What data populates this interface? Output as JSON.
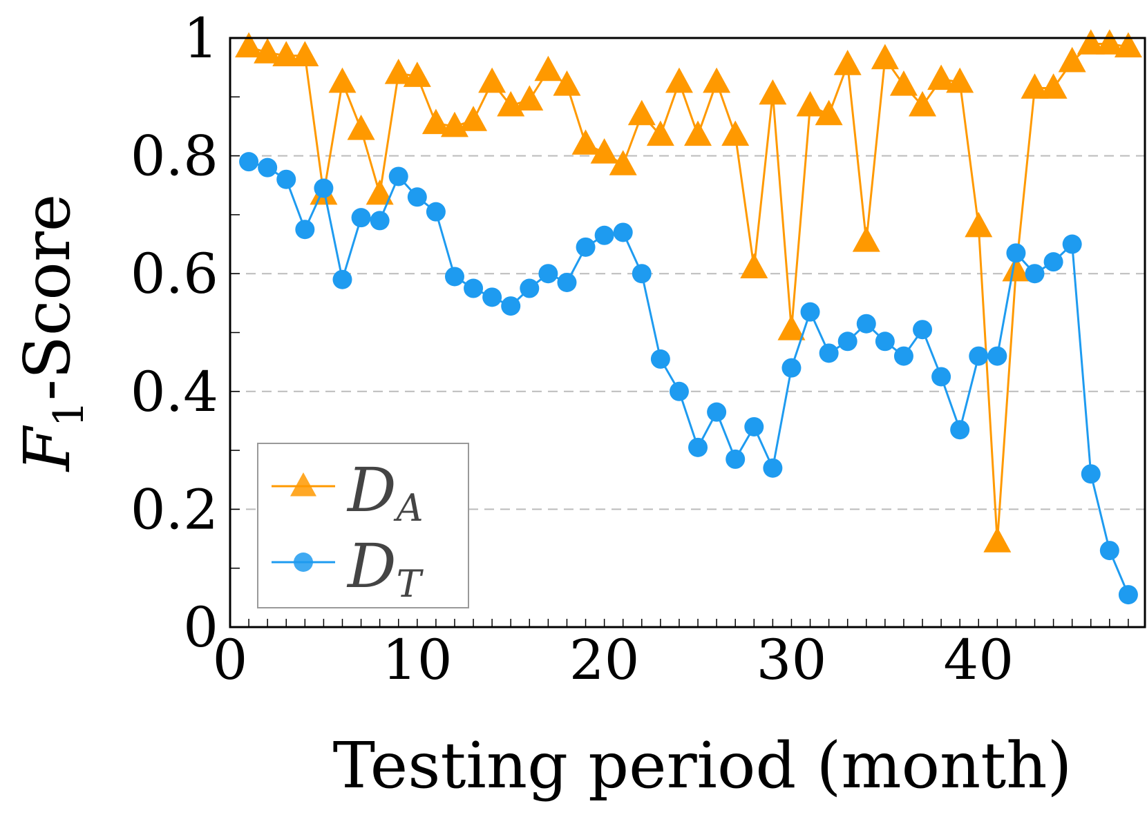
{
  "colors": {
    "series_a": "#FF9900",
    "series_t": "#1E9BF0",
    "grid": "#BBBBBB",
    "axis": "#000000",
    "legend_border": "#999999"
  },
  "chart_data": {
    "type": "line",
    "xlabel": "Testing period (month)",
    "ylabel": "F1-Score",
    "xlim": [
      0,
      49
    ],
    "ylim": [
      0,
      1
    ],
    "x_ticks": [
      0,
      10,
      20,
      30,
      40
    ],
    "x_tick_labels": [
      "0",
      "10",
      "20",
      "30",
      "40"
    ],
    "y_ticks": [
      0,
      0.2,
      0.4,
      0.6,
      0.8,
      1
    ],
    "y_tick_labels": [
      "0",
      "0.2",
      "0.4",
      "0.6",
      "0.8",
      "1"
    ],
    "y_grid": [
      0.2,
      0.4,
      0.6,
      0.8
    ],
    "grid": "dashed horizontal",
    "legend_position": "bottom-left",
    "series": [
      {
        "name": "DA",
        "legend_main": "D",
        "legend_sub": "A",
        "marker": "triangle",
        "color": "#FF9900",
        "x": [
          1,
          2,
          3,
          4,
          5,
          6,
          7,
          8,
          9,
          10,
          11,
          12,
          13,
          14,
          15,
          16,
          17,
          18,
          19,
          20,
          21,
          22,
          23,
          24,
          25,
          26,
          27,
          28,
          29,
          30,
          31,
          32,
          33,
          34,
          35,
          36,
          37,
          38,
          39,
          40,
          41,
          42,
          43,
          44,
          45,
          46,
          47,
          48
        ],
        "y": [
          0.985,
          0.975,
          0.97,
          0.97,
          0.735,
          0.925,
          0.845,
          0.735,
          0.94,
          0.935,
          0.855,
          0.85,
          0.86,
          0.925,
          0.885,
          0.895,
          0.945,
          0.92,
          0.82,
          0.805,
          0.785,
          0.87,
          0.835,
          0.925,
          0.835,
          0.925,
          0.835,
          0.61,
          0.905,
          0.505,
          0.885,
          0.87,
          0.955,
          0.655,
          0.965,
          0.92,
          0.885,
          0.93,
          0.925,
          0.68,
          0.145,
          0.605,
          0.915,
          0.915,
          0.96,
          0.99,
          0.99,
          0.985
        ]
      },
      {
        "name": "DT",
        "legend_main": "D",
        "legend_sub": "T",
        "marker": "circle",
        "color": "#1E9BF0",
        "x": [
          1,
          2,
          3,
          4,
          5,
          6,
          7,
          8,
          9,
          10,
          11,
          12,
          13,
          14,
          15,
          16,
          17,
          18,
          19,
          20,
          21,
          22,
          23,
          24,
          25,
          26,
          27,
          28,
          29,
          30,
          31,
          32,
          33,
          34,
          35,
          36,
          37,
          38,
          39,
          40,
          41,
          42,
          43,
          44,
          45,
          46,
          47,
          48
        ],
        "y": [
          0.79,
          0.78,
          0.76,
          0.675,
          0.745,
          0.59,
          0.695,
          0.69,
          0.765,
          0.73,
          0.705,
          0.595,
          0.575,
          0.56,
          0.545,
          0.575,
          0.6,
          0.585,
          0.645,
          0.665,
          0.67,
          0.6,
          0.455,
          0.4,
          0.305,
          0.365,
          0.285,
          0.34,
          0.27,
          0.44,
          0.535,
          0.465,
          0.485,
          0.515,
          0.485,
          0.46,
          0.505,
          0.425,
          0.335,
          0.46,
          0.46,
          0.635,
          0.6,
          0.62,
          0.65,
          0.26,
          0.13,
          0.055
        ]
      }
    ]
  }
}
